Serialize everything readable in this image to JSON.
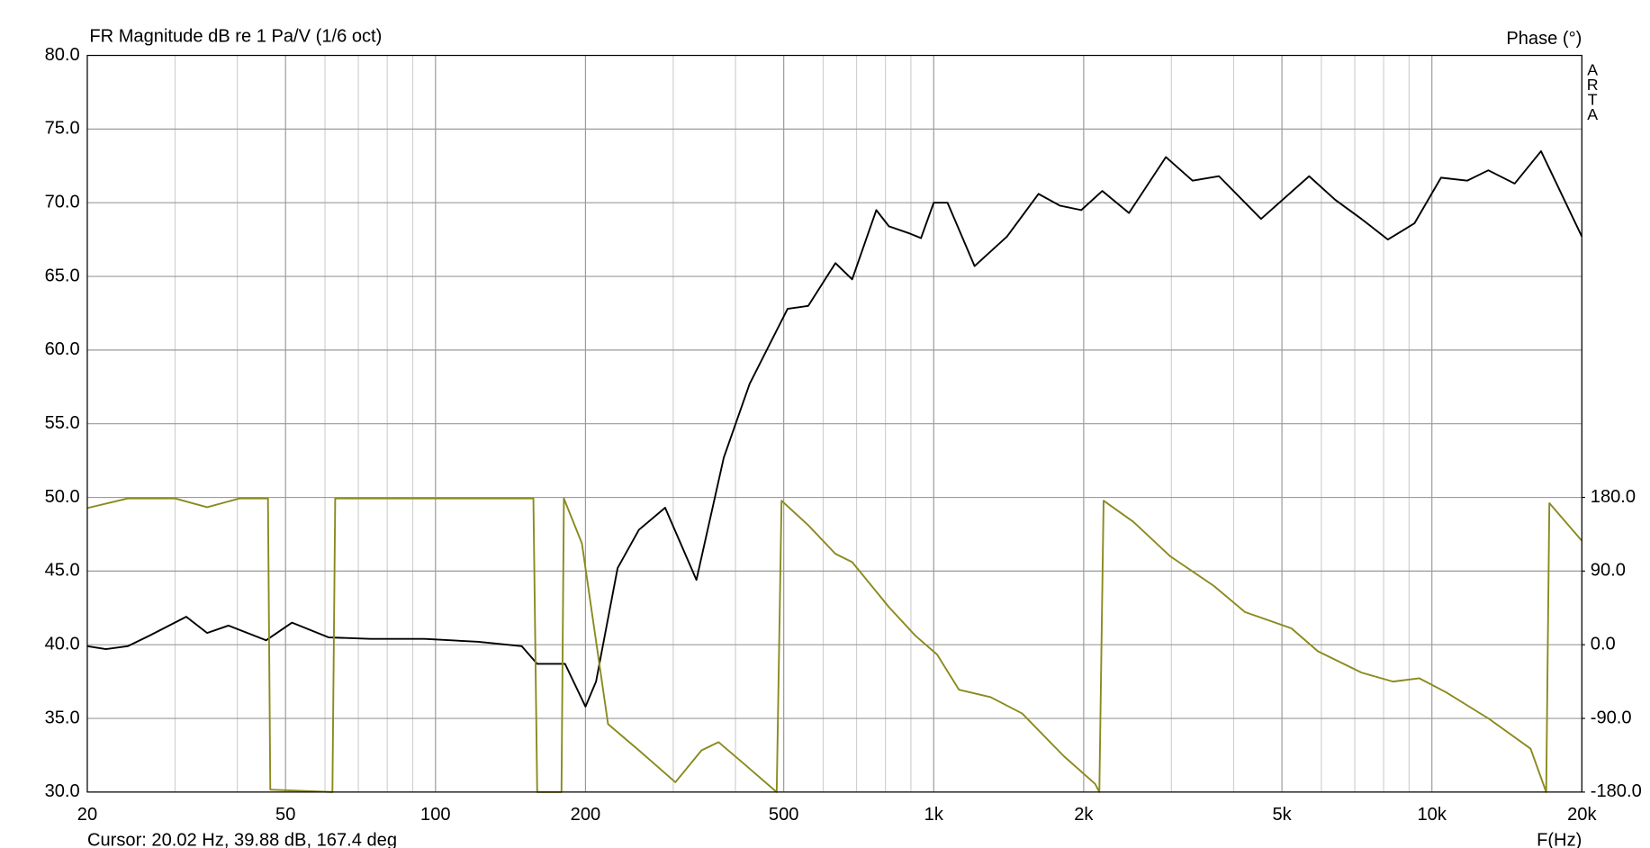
{
  "chart_data": {
    "type": "line",
    "title": "FR Magnitude dB re 1 Pa/V (1/6 oct)",
    "y2_label": "Phase (°)",
    "x_label": "F(Hz)",
    "watermark": "ARTA",
    "annotation": "Cursor: 20.02 Hz, 39.88 dB, 167.4 deg",
    "log_x": true,
    "grid": true,
    "xlim": [
      20,
      20000
    ],
    "xticks": [
      20,
      50,
      100,
      200,
      500,
      {
        "value": 1000,
        "label": "1k"
      },
      {
        "value": 2000,
        "label": "2k"
      },
      {
        "value": 5000,
        "label": "5k"
      },
      {
        "value": 10000,
        "label": "10k"
      },
      {
        "value": 20000,
        "label": "20k"
      }
    ],
    "xminorticks": [
      30,
      40,
      60,
      70,
      80,
      90,
      300,
      400,
      600,
      700,
      800,
      900,
      3000,
      4000,
      6000,
      7000,
      8000,
      9000
    ],
    "ylim": [
      30,
      80
    ],
    "yticks": [
      {
        "value": 30,
        "label": "30.0"
      },
      {
        "value": 35,
        "label": "35.0"
      },
      {
        "value": 40,
        "label": "40.0"
      },
      {
        "value": 45,
        "label": "45.0"
      },
      {
        "value": 50,
        "label": "50.0"
      },
      {
        "value": 55,
        "label": "55.0"
      },
      {
        "value": 60,
        "label": "60.0"
      },
      {
        "value": 65,
        "label": "65.0"
      },
      {
        "value": 70,
        "label": "70.0"
      },
      {
        "value": 75,
        "label": "75.0"
      },
      {
        "value": 80,
        "label": "80.0"
      }
    ],
    "y2lim": [
      -180,
      720
    ],
    "y2ticks": [
      {
        "value": -180,
        "label": "-180.0"
      },
      {
        "value": -90,
        "label": "-90.0"
      },
      {
        "value": 0,
        "label": "0.0"
      },
      {
        "value": 90,
        "label": "90.0"
      },
      {
        "value": 180,
        "label": "180.0"
      }
    ],
    "series": [
      {
        "color": "#000000",
        "x": [
          20,
          21.8,
          24.1,
          26.6,
          31.6,
          34.8,
          38.4,
          45.7,
          51.5,
          61,
          74,
          95,
          122,
          149,
          160,
          182,
          200,
          210,
          232,
          256,
          289,
          334,
          379,
          427,
          509,
          560,
          635,
          686,
          767,
          813,
          897,
          943,
          1000,
          1066,
          1208,
          1403,
          1623,
          1792,
          1978,
          2180,
          2466,
          2924,
          3308,
          3738,
          4540,
          5670,
          6396,
          7221,
          8160,
          9225,
          10430,
          11780,
          12980,
          14660,
          16560,
          20000
        ],
        "values": [
          39.9,
          39.7,
          39.9,
          40.6,
          41.9,
          40.8,
          41.3,
          40.3,
          41.5,
          40.5,
          40.4,
          40.4,
          40.2,
          39.9,
          38.7,
          38.7,
          35.8,
          37.5,
          45.2,
          47.8,
          49.3,
          44.4,
          52.7,
          57.7,
          62.8,
          63.0,
          65.9,
          64.8,
          69.5,
          68.4,
          67.9,
          67.6,
          70.0,
          70.0,
          65.7,
          67.7,
          70.6,
          69.8,
          69.5,
          70.8,
          69.3,
          73.1,
          71.5,
          71.8,
          68.9,
          71.8,
          70.2,
          68.9,
          67.5,
          68.6,
          71.7,
          71.5,
          72.2,
          71.3,
          73.5,
          67.7
        ]
      },
      {
        "color": "#8a8a1e",
        "axis": "y2",
        "x": [
          20,
          24.1,
          30,
          34.8,
          40.4,
          46.1,
          46.6,
          62.1,
          62.9,
          157.2,
          160,
          179,
          181,
          196.7,
          222,
          256,
          303,
          342,
          370,
          417,
          484,
          495,
          560,
          635,
          686,
          813,
          919,
          1016,
          1124,
          1301,
          1505,
          1824,
          2109,
          2150,
          2193,
          2518,
          2985,
          3648,
          4213,
          5225,
          5906,
          7221,
          8350,
          9437,
          10670,
          12980,
          15780,
          16960,
          17210,
          20000
        ],
        "values": [
          167,
          178.7,
          178.7,
          168,
          178.7,
          178.7,
          -177,
          -180,
          178.7,
          178.7,
          -180,
          -180,
          178.7,
          124,
          -97,
          -129,
          -168,
          -129,
          -119,
          -146,
          -180,
          176,
          146,
          111,
          101,
          46,
          11,
          -12,
          -55,
          -64,
          -84,
          -136,
          -170,
          -180,
          176,
          150,
          108,
          72,
          40,
          20,
          -8,
          -34,
          -45,
          -41,
          -58,
          -90,
          -127,
          -180,
          173,
          127
        ]
      }
    ]
  }
}
